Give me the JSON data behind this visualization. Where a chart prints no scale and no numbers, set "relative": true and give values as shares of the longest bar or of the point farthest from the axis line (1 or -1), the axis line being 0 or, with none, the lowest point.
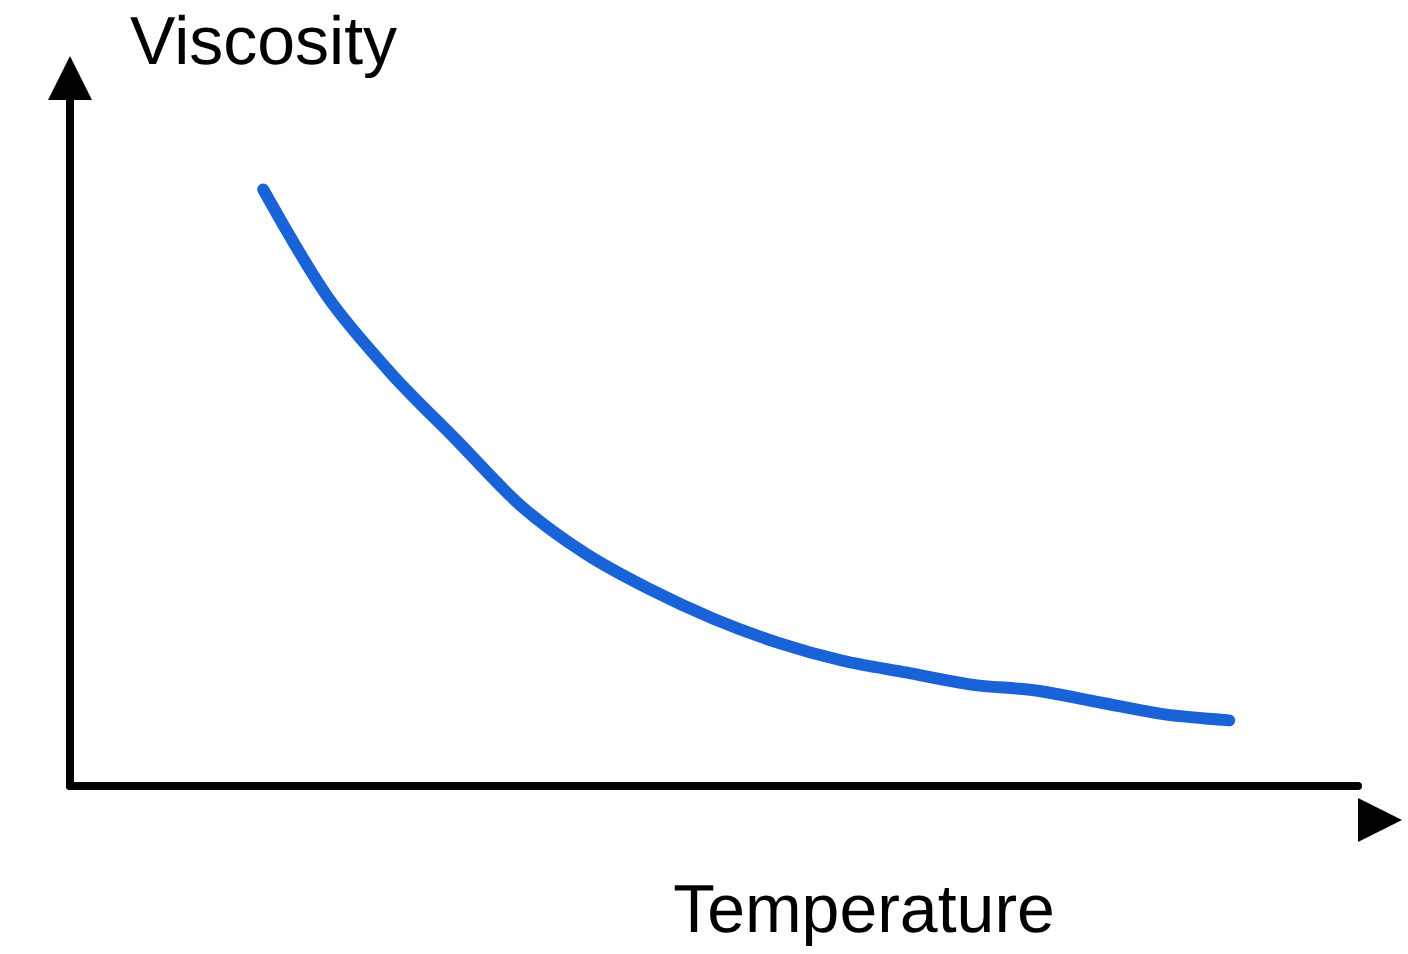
{
  "chart_data": {
    "type": "line",
    "relative": true,
    "xlabel": "Temperature",
    "ylabel": "Viscosity",
    "categories": [
      null,
      null,
      null,
      null,
      null,
      null,
      null,
      null,
      null,
      null,
      null,
      null,
      null,
      null,
      null,
      null,
      null,
      null,
      null,
      null,
      null
    ],
    "series": [
      {
        "color": "#1a62d8",
        "values": [
          null,
          null,
          null,
          1,
          0.82,
          0.69,
          0.58,
          0.47,
          0.39,
          0.33,
          0.28,
          0.24,
          0.21,
          0.19,
          0.17,
          0.16,
          0.14,
          0.12,
          0.11,
          null,
          null
        ]
      }
    ],
    "marker": "none",
    "line_style": "solid"
  }
}
